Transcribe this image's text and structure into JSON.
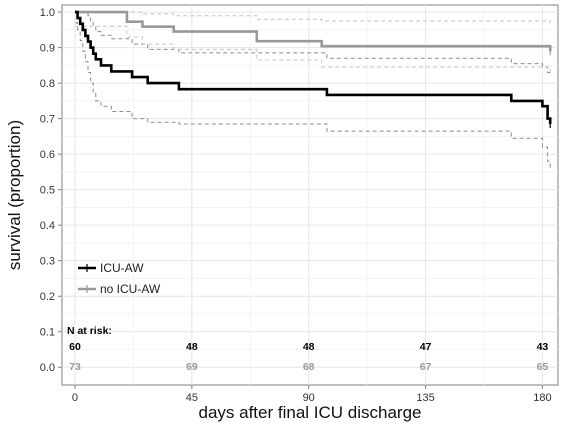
{
  "chart_data": {
    "type": "line",
    "xlabel": "days after final ICU discharge",
    "ylabel": "survival (proportion)",
    "xlim": [
      -5,
      186
    ],
    "ylim": [
      -0.05,
      1.02
    ],
    "x_ticks": [
      0,
      45,
      90,
      135,
      180
    ],
    "y_ticks": [
      0.0,
      0.1,
      0.2,
      0.3,
      0.4,
      0.5,
      0.6,
      0.7,
      0.8,
      0.9,
      1.0
    ],
    "y_tick_labels": [
      "0.0",
      "0.1",
      "0.2",
      "0.3",
      "0.4",
      "0.5",
      "0.6",
      "0.7",
      "0.8",
      "0.9",
      "1.0"
    ],
    "grid": true,
    "legend_position": "bottom-left",
    "series": [
      {
        "name": "ICU-AW",
        "color": "#000000",
        "x": [
          0,
          1,
          2,
          3,
          4,
          5,
          6,
          7,
          8,
          10,
          14,
          22,
          28,
          40,
          97,
          168,
          180,
          182,
          183
        ],
        "y": [
          1.0,
          0.983,
          0.967,
          0.95,
          0.933,
          0.917,
          0.9,
          0.883,
          0.867,
          0.85,
          0.833,
          0.817,
          0.8,
          0.783,
          0.767,
          0.75,
          0.735,
          0.7,
          0.685
        ],
        "ci_lower": [
          0.97,
          0.95,
          0.92,
          0.89,
          0.86,
          0.83,
          0.8,
          0.77,
          0.75,
          0.735,
          0.72,
          0.7,
          0.69,
          0.685,
          0.665,
          0.645,
          0.62,
          0.58,
          0.555
        ],
        "ci_upper": [
          1.0,
          1.0,
          1.0,
          1.0,
          1.0,
          0.99,
          0.975,
          0.96,
          0.945,
          0.935,
          0.925,
          0.91,
          0.895,
          0.885,
          0.87,
          0.855,
          0.845,
          0.83,
          0.82
        ]
      },
      {
        "name": "no ICU-AW",
        "color": "#999999",
        "x": [
          0,
          20,
          26,
          38,
          70,
          95,
          183
        ],
        "y": [
          1.0,
          0.973,
          0.959,
          0.945,
          0.918,
          0.904,
          0.89
        ],
        "ci_lower": [
          0.96,
          0.93,
          0.91,
          0.895,
          0.865,
          0.845,
          0.825
        ],
        "ci_upper": [
          1.0,
          1.0,
          0.995,
          0.99,
          0.98,
          0.975,
          0.97
        ]
      }
    ],
    "risk_table": {
      "title": "N at risk:",
      "x": [
        0,
        45,
        90,
        135,
        180
      ],
      "rows": [
        {
          "name": "ICU-AW",
          "color": "#000000",
          "values": [
            "60",
            "48",
            "48",
            "47",
            "43"
          ]
        },
        {
          "name": "no ICU-AW",
          "color": "#999999",
          "values": [
            "73",
            "69",
            "68",
            "67",
            "65"
          ]
        }
      ]
    }
  }
}
